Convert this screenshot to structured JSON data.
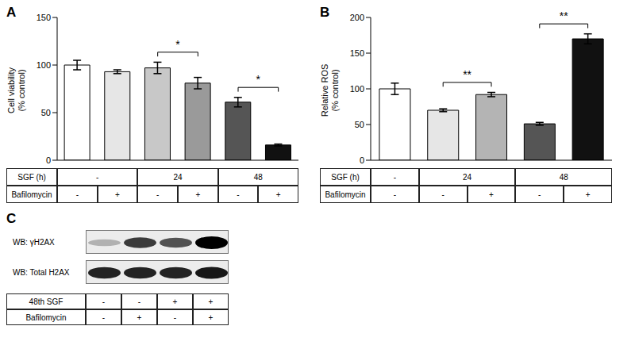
{
  "chart_data": [
    {
      "type": "bar",
      "panel": "A",
      "y_label": "Cell viability\n(% control)",
      "categories": [
        null,
        null,
        null,
        null,
        null,
        null
      ],
      "values": [
        100,
        93,
        97,
        81,
        61,
        16
      ],
      "errors": [
        5,
        2,
        6,
        6,
        5,
        1
      ],
      "colors": [
        "#ffffff",
        "#e6e6e6",
        "#c8c8c8",
        "#9a9a9a",
        "#555555",
        "#111111"
      ],
      "ylim": [
        0,
        150
      ],
      "yticks": [
        0,
        50,
        100,
        150
      ],
      "tick_labels": "y",
      "annotations": [
        {
          "text": "*",
          "from": 2,
          "to": 3
        },
        {
          "text": "*",
          "from": 4,
          "to": 5
        }
      ],
      "conditions": [
        {
          "label": "SGF (h)",
          "cells": [
            {
              "text": "-",
              "span": 2
            },
            {
              "text": "24",
              "span": 2
            },
            {
              "text": "48",
              "span": 2
            }
          ]
        },
        {
          "label": "Bafilomycin",
          "cells": [
            {
              "text": "-",
              "span": 1
            },
            {
              "text": "+",
              "span": 1
            },
            {
              "text": "-",
              "span": 1
            },
            {
              "text": "+",
              "span": 1
            },
            {
              "text": "-",
              "span": 1
            },
            {
              "text": "+",
              "span": 1
            }
          ]
        }
      ]
    },
    {
      "type": "bar",
      "panel": "B",
      "y_label": "Relative ROS\n(% control)",
      "categories": [
        null,
        null,
        null,
        null,
        null
      ],
      "values": [
        100,
        70,
        92,
        51,
        170
      ],
      "errors": [
        8,
        2,
        3,
        2,
        7
      ],
      "colors": [
        "#ffffff",
        "#e6e6e6",
        "#b4b4b4",
        "#555555",
        "#111111"
      ],
      "ylim": [
        0,
        200
      ],
      "yticks": [
        0,
        50,
        100,
        150,
        200
      ],
      "tick_labels": "y",
      "annotations": [
        {
          "text": "**",
          "from": 1,
          "to": 2
        },
        {
          "text": "**",
          "from": 3,
          "to": 4
        }
      ],
      "conditions": [
        {
          "label": "SGF (h)",
          "cells": [
            {
              "text": "-",
              "span": 1
            },
            {
              "text": "24",
              "span": 2
            },
            {
              "text": "48",
              "span": 2
            }
          ]
        },
        {
          "label": "Bafilomycin",
          "cells": [
            {
              "text": "-",
              "span": 1
            },
            {
              "text": "-",
              "span": 1
            },
            {
              "text": "+",
              "span": 1
            },
            {
              "text": "-",
              "span": 1
            },
            {
              "text": "+",
              "span": 1
            }
          ]
        }
      ]
    }
  ],
  "blot": {
    "panel": "C",
    "rows": [
      {
        "label": "WB: γH2AX",
        "intensity": [
          0.25,
          0.75,
          0.65,
          1.0
        ]
      },
      {
        "label": "WB: Total H2AX",
        "intensity": [
          0.85,
          0.85,
          0.85,
          0.9
        ]
      }
    ],
    "conditions": [
      {
        "label": "48th SGF",
        "cells": [
          "-",
          "-",
          "+",
          "+"
        ]
      },
      {
        "label": "Bafilomycin",
        "cells": [
          "-",
          "+",
          "-",
          "+"
        ]
      }
    ]
  }
}
